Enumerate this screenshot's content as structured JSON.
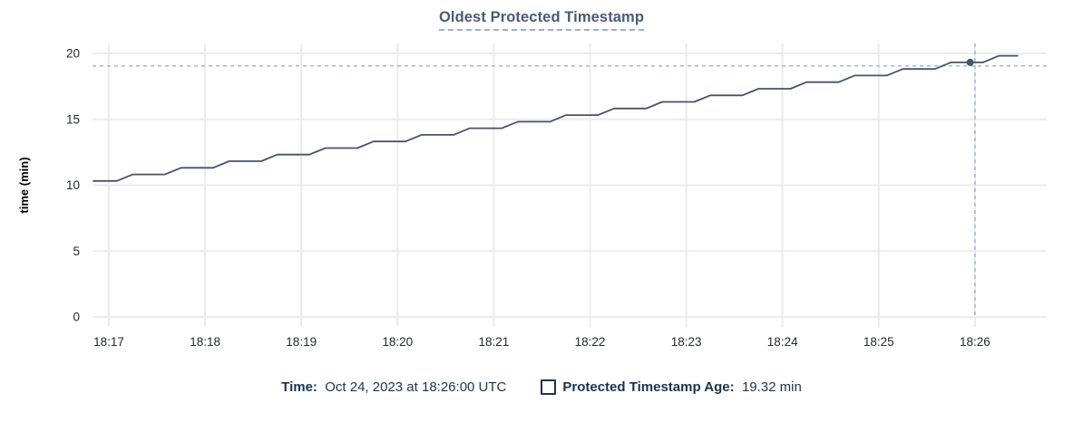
{
  "title": "Oldest Protected Timestamp",
  "chart_data": {
    "type": "line",
    "title": "Oldest Protected Timestamp",
    "xlabel": "",
    "ylabel": "time (min)",
    "ylim": [
      0,
      20
    ],
    "yticks": [
      0,
      5,
      10,
      15,
      20
    ],
    "xtick_labels": [
      "18:17",
      "18:18",
      "18:19",
      "18:20",
      "18:21",
      "18:22",
      "18:23",
      "18:24",
      "18:25",
      "18:26"
    ],
    "x_unit": "seconds after 18:17:00 UTC",
    "xlim_seconds": [
      -10,
      585
    ],
    "grid": true,
    "legend_position": "bottom",
    "series": [
      {
        "name": "Protected Timestamp Age",
        "unit": "min",
        "points": [
          [
            -10,
            10.32
          ],
          [
            5,
            10.32
          ],
          [
            15,
            10.82
          ],
          [
            35,
            10.82
          ],
          [
            45,
            11.32
          ],
          [
            65,
            11.32
          ],
          [
            75,
            11.82
          ],
          [
            95,
            11.82
          ],
          [
            105,
            12.32
          ],
          [
            125,
            12.32
          ],
          [
            135,
            12.82
          ],
          [
            155,
            12.82
          ],
          [
            165,
            13.32
          ],
          [
            185,
            13.32
          ],
          [
            195,
            13.82
          ],
          [
            215,
            13.82
          ],
          [
            225,
            14.32
          ],
          [
            245,
            14.32
          ],
          [
            255,
            14.82
          ],
          [
            275,
            14.82
          ],
          [
            285,
            15.32
          ],
          [
            305,
            15.32
          ],
          [
            315,
            15.82
          ],
          [
            335,
            15.82
          ],
          [
            345,
            16.32
          ],
          [
            365,
            16.32
          ],
          [
            375,
            16.82
          ],
          [
            395,
            16.82
          ],
          [
            405,
            17.32
          ],
          [
            425,
            17.32
          ],
          [
            435,
            17.82
          ],
          [
            455,
            17.82
          ],
          [
            465,
            18.32
          ],
          [
            485,
            18.32
          ],
          [
            495,
            18.82
          ],
          [
            515,
            18.82
          ],
          [
            525,
            19.32
          ],
          [
            545,
            19.32
          ],
          [
            555,
            19.82
          ],
          [
            567,
            19.82
          ]
        ]
      }
    ],
    "hover": {
      "cursor_time_label": "18:26:00",
      "cursor_t_seconds": 540,
      "cursor_value_min": 19.05,
      "point_t_seconds": 537,
      "point_value_min": 19.32
    }
  },
  "footer": {
    "time_label": "Time:",
    "time_value": "Oct 24, 2023 at 18:26:00 UTC",
    "series_label": "Protected Timestamp Age:",
    "series_value": "19.32 min"
  },
  "colors": {
    "line": "#44536e",
    "marker": "#44536e",
    "grid": "#ececec",
    "cursor_dash": "#9fb4c2",
    "axis_text": "#24292e",
    "axis_title_text": "#000000",
    "title_text": "#475b77",
    "title_underline": "#9bb0c7",
    "footer_text": "#1a3350",
    "background": "#ffffff"
  }
}
